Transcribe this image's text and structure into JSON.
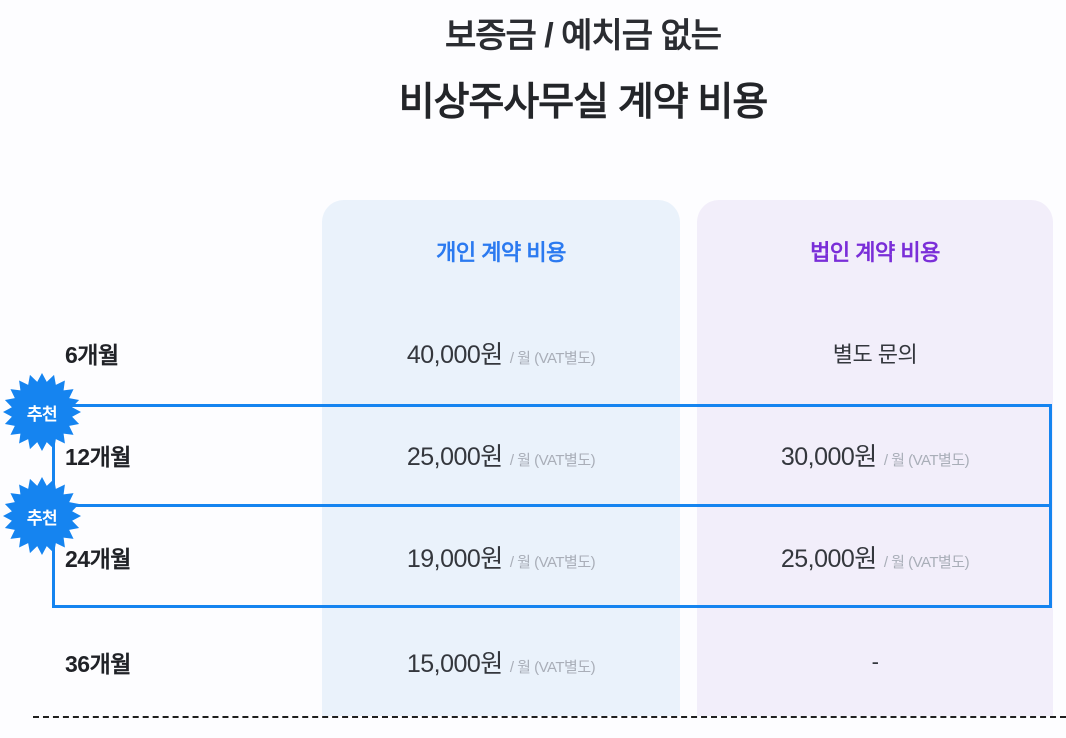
{
  "title": {
    "line1": "보증금 / 예치금 없는",
    "line2": "비상주사무실 계약 비용"
  },
  "table": {
    "badge_label": "추천",
    "columns": [
      {
        "label": "개인 계약 비용",
        "text_color": "#2b7af0",
        "bg_color": "#eaf2fb"
      },
      {
        "label": "법인 계약 비용",
        "text_color": "#7a2ed8",
        "bg_color": "#f2eefa"
      }
    ],
    "rows": [
      {
        "term": "6개월",
        "recommended": false,
        "personal": {
          "price": "40,000원",
          "suffix": "/ 월 (VAT별도)"
        },
        "corporate": {
          "text": "별도 문의"
        }
      },
      {
        "term": "12개월",
        "recommended": true,
        "personal": {
          "price": "25,000원",
          "suffix": "/ 월 (VAT별도)"
        },
        "corporate": {
          "price": "30,000원",
          "suffix": "/ 월 (VAT별도)"
        }
      },
      {
        "term": "24개월",
        "recommended": true,
        "personal": {
          "price": "19,000원",
          "suffix": "/ 월 (VAT별도)"
        },
        "corporate": {
          "price": "25,000원",
          "suffix": "/ 월 (VAT별도)"
        }
      },
      {
        "term": "36개월",
        "recommended": false,
        "personal": {
          "price": "15,000원",
          "suffix": "/ 월 (VAT별도)"
        },
        "corporate": {
          "text": "-"
        }
      }
    ]
  },
  "colors": {
    "accent_blue": "#1584f0",
    "header_blue": "#2b7af0",
    "header_purple": "#7a2ed8",
    "personal_column_bg": "#eaf2fb",
    "corporate_column_bg": "#f2eefa",
    "price_text": "#34373d",
    "muted_text": "#a9aeb8"
  }
}
